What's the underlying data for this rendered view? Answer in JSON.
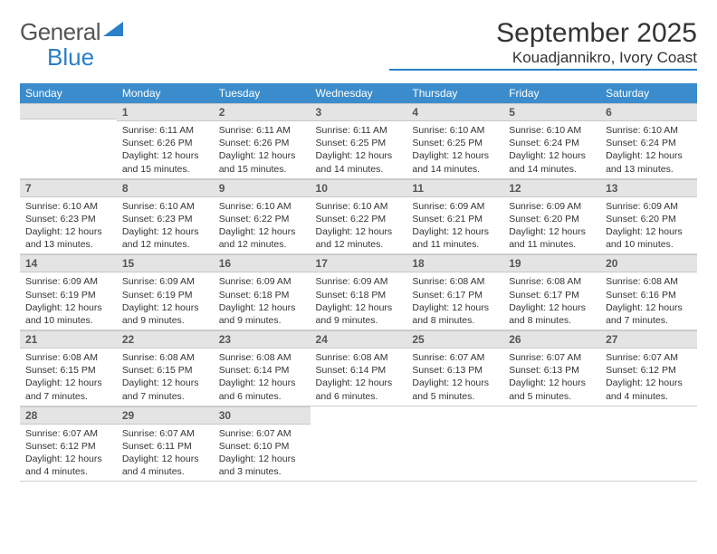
{
  "logo": {
    "part1": "General",
    "part2": "Blue"
  },
  "title": "September 2025",
  "location": "Kouadjannikro, Ivory Coast",
  "colors": {
    "header_bg": "#3b8ccc",
    "daynum_bg": "#e4e4e4",
    "accent": "#2a7fc9",
    "text": "#333333"
  },
  "weekdays": [
    "Sunday",
    "Monday",
    "Tuesday",
    "Wednesday",
    "Thursday",
    "Friday",
    "Saturday"
  ],
  "month": {
    "year": 2025,
    "month": 9,
    "first_weekday": 1,
    "days_in_month": 30
  },
  "days": {
    "1": {
      "sunrise": "6:11 AM",
      "sunset": "6:26 PM",
      "daylight": "12 hours and 15 minutes."
    },
    "2": {
      "sunrise": "6:11 AM",
      "sunset": "6:26 PM",
      "daylight": "12 hours and 15 minutes."
    },
    "3": {
      "sunrise": "6:11 AM",
      "sunset": "6:25 PM",
      "daylight": "12 hours and 14 minutes."
    },
    "4": {
      "sunrise": "6:10 AM",
      "sunset": "6:25 PM",
      "daylight": "12 hours and 14 minutes."
    },
    "5": {
      "sunrise": "6:10 AM",
      "sunset": "6:24 PM",
      "daylight": "12 hours and 14 minutes."
    },
    "6": {
      "sunrise": "6:10 AM",
      "sunset": "6:24 PM",
      "daylight": "12 hours and 13 minutes."
    },
    "7": {
      "sunrise": "6:10 AM",
      "sunset": "6:23 PM",
      "daylight": "12 hours and 13 minutes."
    },
    "8": {
      "sunrise": "6:10 AM",
      "sunset": "6:23 PM",
      "daylight": "12 hours and 12 minutes."
    },
    "9": {
      "sunrise": "6:10 AM",
      "sunset": "6:22 PM",
      "daylight": "12 hours and 12 minutes."
    },
    "10": {
      "sunrise": "6:10 AM",
      "sunset": "6:22 PM",
      "daylight": "12 hours and 12 minutes."
    },
    "11": {
      "sunrise": "6:09 AM",
      "sunset": "6:21 PM",
      "daylight": "12 hours and 11 minutes."
    },
    "12": {
      "sunrise": "6:09 AM",
      "sunset": "6:20 PM",
      "daylight": "12 hours and 11 minutes."
    },
    "13": {
      "sunrise": "6:09 AM",
      "sunset": "6:20 PM",
      "daylight": "12 hours and 10 minutes."
    },
    "14": {
      "sunrise": "6:09 AM",
      "sunset": "6:19 PM",
      "daylight": "12 hours and 10 minutes."
    },
    "15": {
      "sunrise": "6:09 AM",
      "sunset": "6:19 PM",
      "daylight": "12 hours and 9 minutes."
    },
    "16": {
      "sunrise": "6:09 AM",
      "sunset": "6:18 PM",
      "daylight": "12 hours and 9 minutes."
    },
    "17": {
      "sunrise": "6:09 AM",
      "sunset": "6:18 PM",
      "daylight": "12 hours and 9 minutes."
    },
    "18": {
      "sunrise": "6:08 AM",
      "sunset": "6:17 PM",
      "daylight": "12 hours and 8 minutes."
    },
    "19": {
      "sunrise": "6:08 AM",
      "sunset": "6:17 PM",
      "daylight": "12 hours and 8 minutes."
    },
    "20": {
      "sunrise": "6:08 AM",
      "sunset": "6:16 PM",
      "daylight": "12 hours and 7 minutes."
    },
    "21": {
      "sunrise": "6:08 AM",
      "sunset": "6:15 PM",
      "daylight": "12 hours and 7 minutes."
    },
    "22": {
      "sunrise": "6:08 AM",
      "sunset": "6:15 PM",
      "daylight": "12 hours and 7 minutes."
    },
    "23": {
      "sunrise": "6:08 AM",
      "sunset": "6:14 PM",
      "daylight": "12 hours and 6 minutes."
    },
    "24": {
      "sunrise": "6:08 AM",
      "sunset": "6:14 PM",
      "daylight": "12 hours and 6 minutes."
    },
    "25": {
      "sunrise": "6:07 AM",
      "sunset": "6:13 PM",
      "daylight": "12 hours and 5 minutes."
    },
    "26": {
      "sunrise": "6:07 AM",
      "sunset": "6:13 PM",
      "daylight": "12 hours and 5 minutes."
    },
    "27": {
      "sunrise": "6:07 AM",
      "sunset": "6:12 PM",
      "daylight": "12 hours and 4 minutes."
    },
    "28": {
      "sunrise": "6:07 AM",
      "sunset": "6:12 PM",
      "daylight": "12 hours and 4 minutes."
    },
    "29": {
      "sunrise": "6:07 AM",
      "sunset": "6:11 PM",
      "daylight": "12 hours and 4 minutes."
    },
    "30": {
      "sunrise": "6:07 AM",
      "sunset": "6:10 PM",
      "daylight": "12 hours and 3 minutes."
    }
  },
  "labels": {
    "sunrise": "Sunrise:",
    "sunset": "Sunset:",
    "daylight": "Daylight:"
  }
}
